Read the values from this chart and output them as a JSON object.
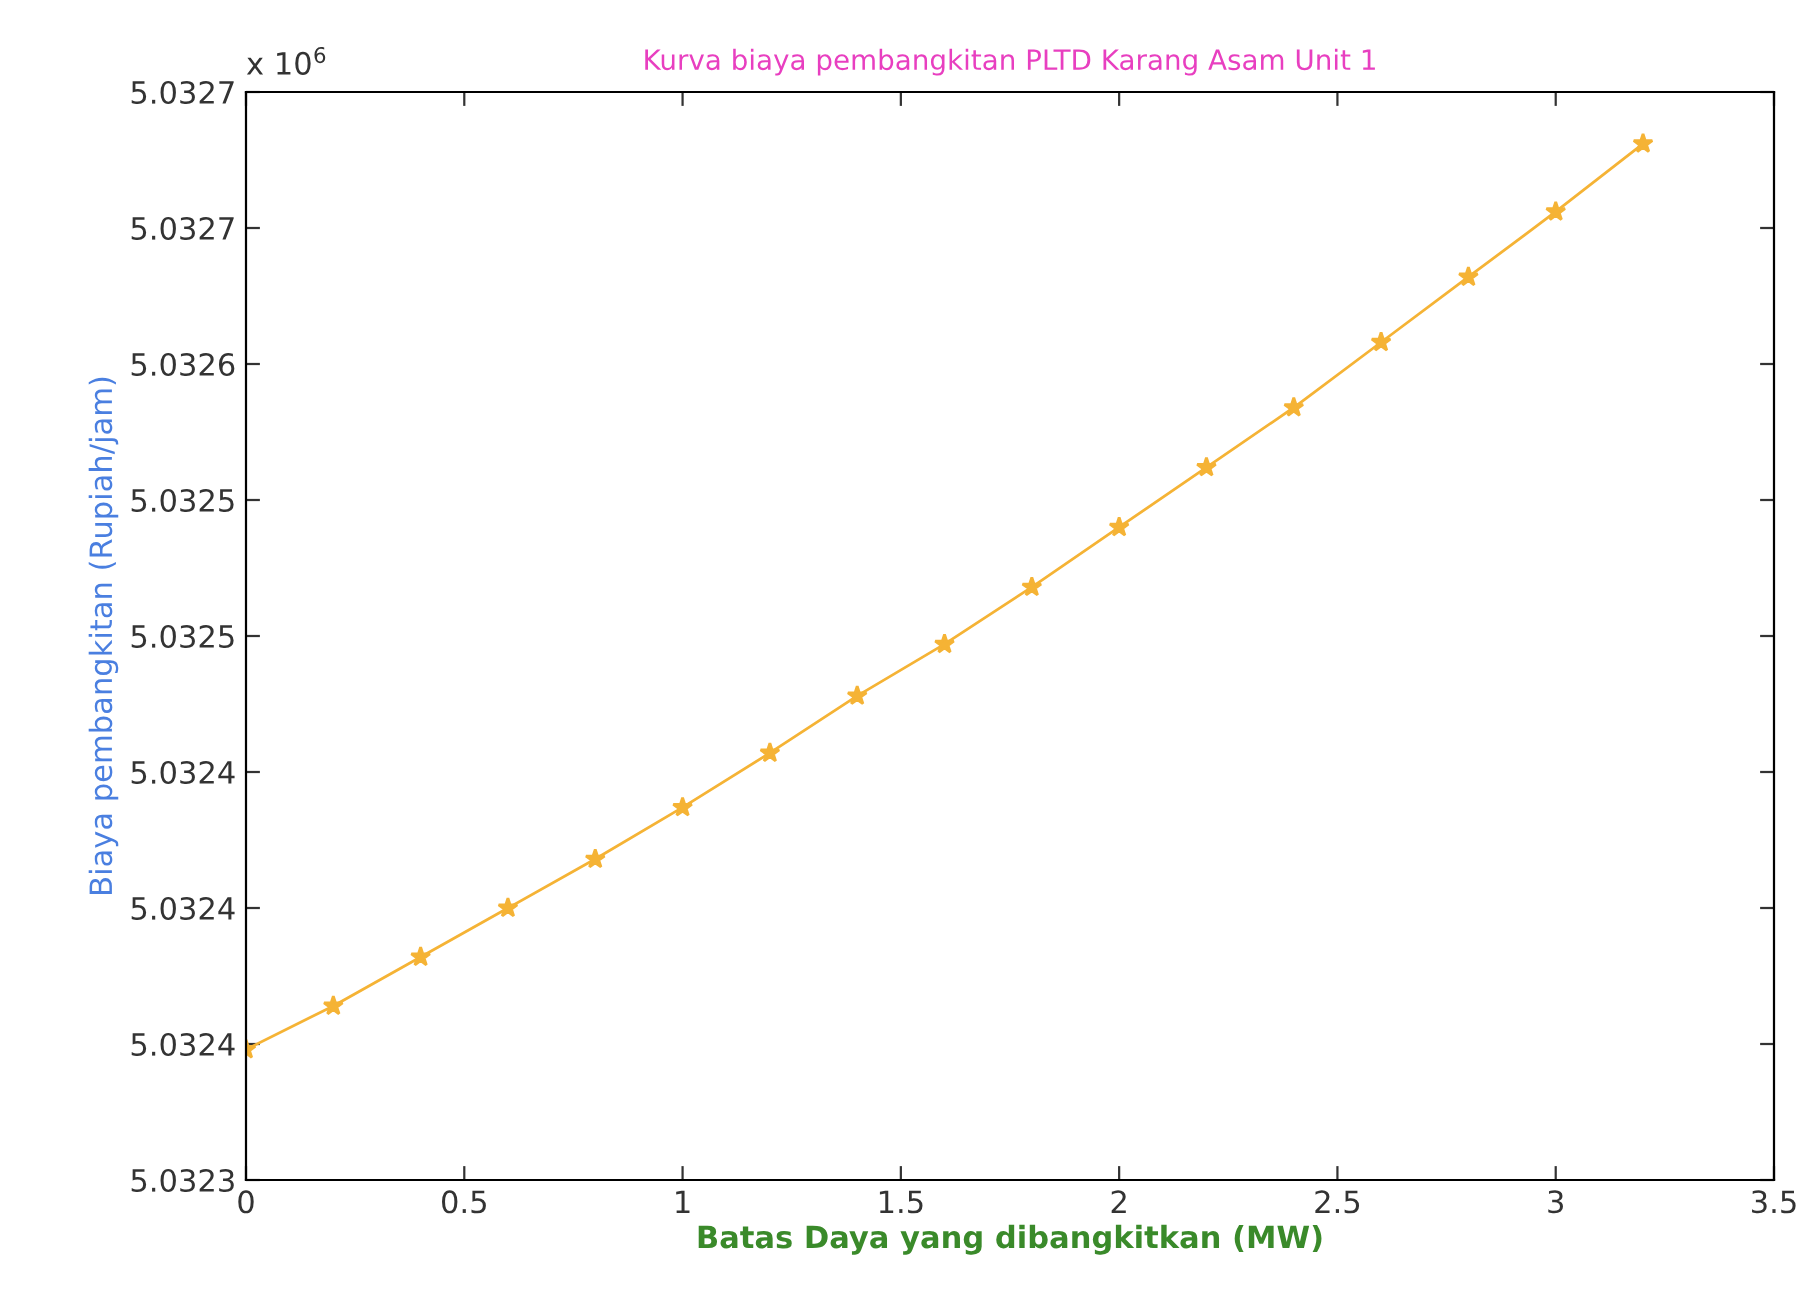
{
  "chart_data": {
    "type": "line",
    "title": "Kurva biaya pembangkitan PLTD Karang Asam Unit 1",
    "xlabel": "Batas Daya yang dibangkitkan (MW)",
    "ylabel": "Biaya pembangkitan (Rupiah/jam)",
    "annotations": [
      "x 10$^{6}$"
    ],
    "x": [
      0,
      0.2,
      0.4,
      0.6,
      0.8,
      1.0,
      1.2,
      1.4,
      1.6,
      1.8,
      2.0,
      2.2,
      2.4,
      2.6,
      2.8,
      3.0,
      3.2
    ],
    "series": [
      {
        "color": "#f5b335",
        "values": [
          5.032348,
          5.032364,
          5.032382,
          5.0324,
          5.032418,
          5.032437,
          5.032457,
          5.032478,
          5.032497,
          5.032518,
          5.03254,
          5.032562,
          5.032584,
          5.032608,
          5.032632,
          5.032656,
          5.032681
        ]
      }
    ],
    "xlim": [
      0,
      3.5
    ],
    "xticks": [
      0,
      0.5,
      1,
      1.5,
      2,
      2.5,
      3,
      3.5
    ],
    "ylim": [
      5.0323,
      5.0327
    ],
    "yticks": [
      5.0323,
      {
        "value": 5.03235,
        "label": "5.0324"
      },
      5.0324,
      {
        "value": 5.03245,
        "label": "5.0324"
      },
      5.0325,
      {
        "value": 5.03255,
        "label": "5.0325"
      },
      5.0326,
      {
        "value": 5.03265,
        "label": "5.0327"
      },
      5.0327
    ],
    "marker": "star",
    "line_style": "solid",
    "grid": false,
    "legend": false
  }
}
